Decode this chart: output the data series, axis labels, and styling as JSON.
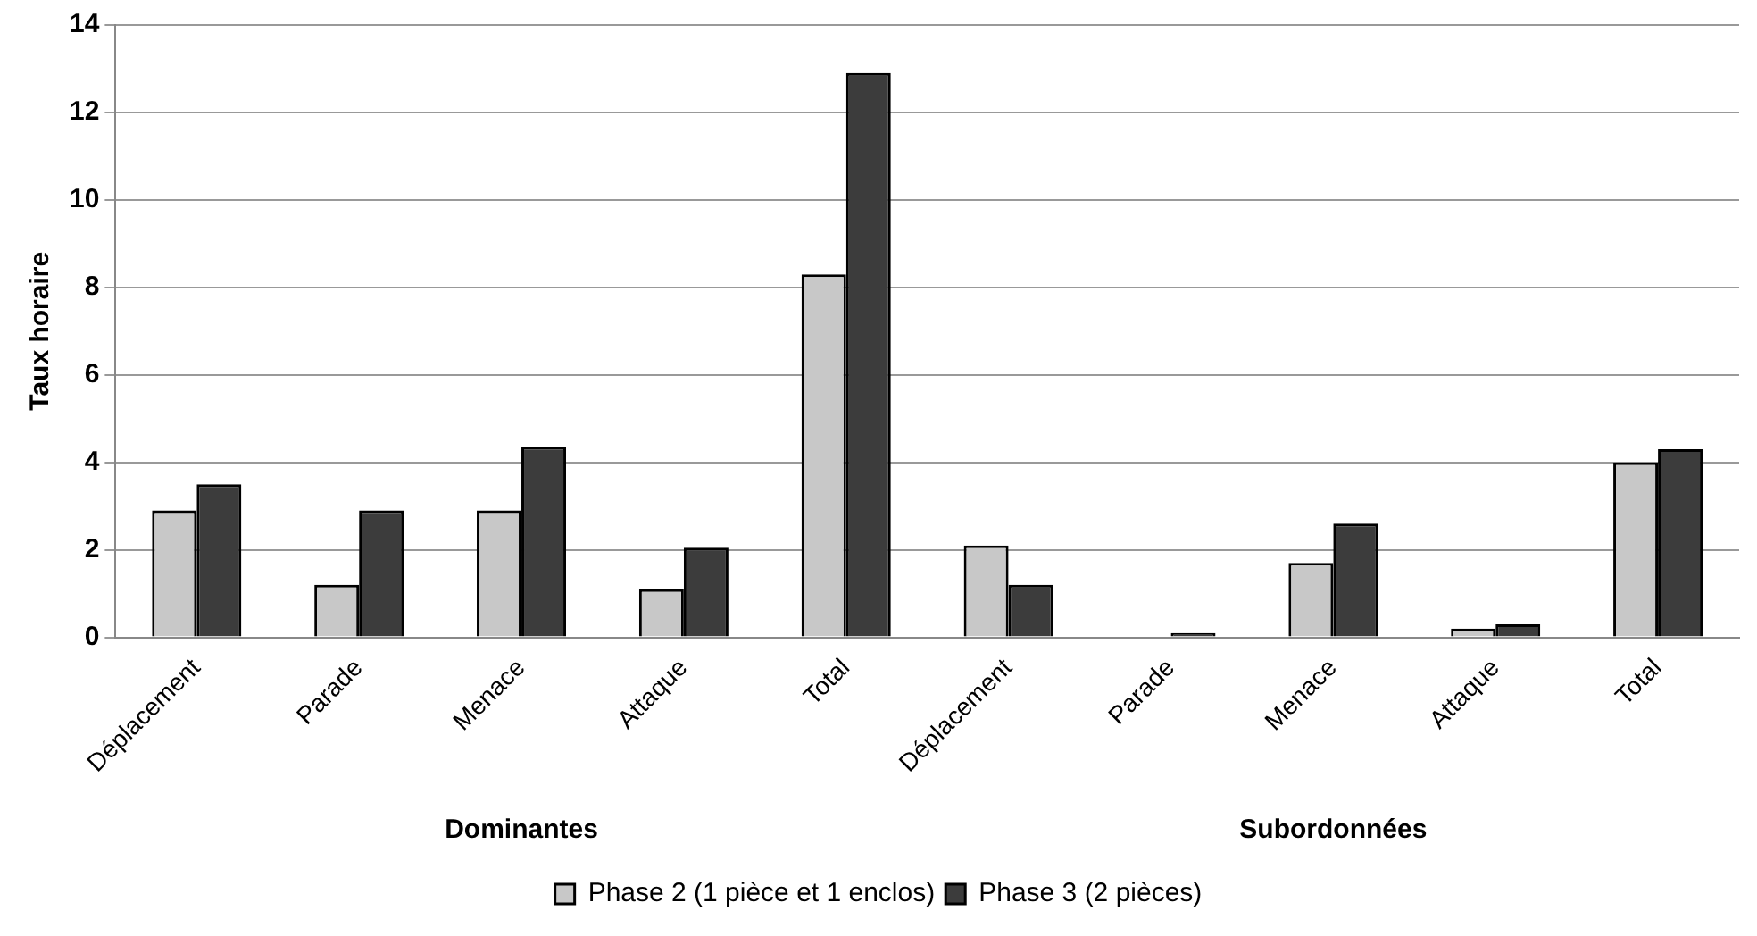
{
  "chart_data": {
    "type": "bar",
    "ylabel": "Taux horaire",
    "categories": [
      "Déplacement",
      "Parade",
      "Menace",
      "Attaque",
      "Total",
      "Déplacement",
      "Parade",
      "Menace",
      "Attaque",
      "Total"
    ],
    "series": [
      {
        "name": "Phase 2 (1 pièce et 1 enclos)",
        "color": "#c8c8c8",
        "values": [
          2.9,
          1.2,
          2.9,
          1.1,
          8.3,
          2.1,
          null,
          1.7,
          0.2,
          4.0
        ]
      },
      {
        "name": "Phase 3 (2 pièces)",
        "color": "#3c3c3c",
        "values": [
          3.5,
          2.9,
          4.35,
          2.05,
          12.9,
          1.2,
          0.1,
          2.6,
          0.3,
          4.3
        ]
      }
    ],
    "annotations": [
      "Dominantes",
      "Subordonnées"
    ],
    "ylim": [
      0,
      14
    ],
    "yticks": [
      0,
      2,
      4,
      6,
      8,
      10,
      12,
      14
    ],
    "grid": "y",
    "legend": "bottom"
  }
}
